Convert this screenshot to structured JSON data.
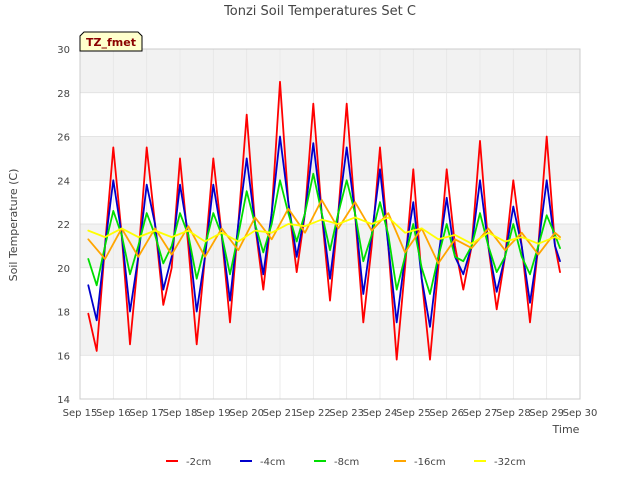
{
  "chart_data": {
    "type": "line",
    "title": "Tonzi Soil Temperatures Set C",
    "xlabel": "Time",
    "ylabel": "Soil Temperature (C)",
    "annotation": "TZ_fmet",
    "xlim": [
      15,
      30
    ],
    "ylim": [
      14,
      30
    ],
    "x_ticks": [
      15,
      16,
      17,
      18,
      19,
      20,
      21,
      22,
      23,
      24,
      25,
      26,
      27,
      28,
      29,
      30
    ],
    "x_tick_labels": [
      "Sep 15",
      "Sep 16",
      "Sep 17",
      "Sep 18",
      "Sep 19",
      "Sep 20",
      "Sep 21",
      "Sep 22",
      "Sep 23",
      "Sep 24",
      "Sep 25",
      "Sep 26",
      "Sep 27",
      "Sep 28",
      "Sep 29",
      "Sep 30"
    ],
    "y_ticks": [
      14,
      16,
      18,
      20,
      22,
      24,
      26,
      28,
      30
    ],
    "y_tick_labels": [
      "14",
      "16",
      "18",
      "20",
      "22",
      "24",
      "26",
      "28",
      "30"
    ],
    "grid": true,
    "legend_position": "bottom",
    "series": [
      {
        "name": "-2cm",
        "color": "#ff0000",
        "x": [
          15.25,
          15.5,
          15.75,
          16.0,
          16.25,
          16.5,
          16.75,
          17.0,
          17.25,
          17.5,
          17.75,
          18.0,
          18.25,
          18.5,
          18.75,
          19.0,
          19.25,
          19.5,
          19.75,
          20.0,
          20.25,
          20.5,
          20.75,
          21.0,
          21.25,
          21.5,
          21.75,
          22.0,
          22.25,
          22.5,
          22.75,
          23.0,
          23.25,
          23.5,
          23.75,
          24.0,
          24.25,
          24.5,
          24.75,
          25.0,
          25.25,
          25.5,
          25.75,
          26.0,
          26.25,
          26.5,
          26.75,
          27.0,
          27.25,
          27.5,
          27.75,
          28.0,
          28.25,
          28.5,
          28.75,
          29.0,
          29.25,
          29.4
        ],
        "y": [
          17.9,
          16.2,
          21.0,
          25.5,
          21.5,
          16.5,
          20.5,
          25.5,
          22.0,
          18.3,
          20.0,
          25.0,
          21.0,
          16.5,
          20.5,
          25.0,
          21.5,
          17.5,
          22.0,
          27.0,
          22.0,
          19.0,
          22.5,
          28.5,
          23.0,
          19.8,
          22.5,
          27.5,
          22.5,
          18.5,
          22.5,
          27.5,
          22.5,
          17.5,
          21.0,
          25.5,
          21.0,
          15.8,
          20.0,
          24.5,
          19.5,
          15.8,
          20.0,
          24.5,
          21.0,
          19.0,
          21.0,
          25.8,
          21.0,
          18.1,
          20.5,
          24.0,
          21.0,
          17.5,
          21.0,
          26.0,
          21.0,
          19.8
        ]
      },
      {
        "name": "-4cm",
        "color": "#0000cc",
        "x": [
          15.25,
          15.5,
          15.75,
          16.0,
          16.25,
          16.5,
          16.75,
          17.0,
          17.25,
          17.5,
          17.75,
          18.0,
          18.25,
          18.5,
          18.75,
          19.0,
          19.25,
          19.5,
          19.75,
          20.0,
          20.25,
          20.5,
          20.75,
          21.0,
          21.25,
          21.5,
          21.75,
          22.0,
          22.25,
          22.5,
          22.75,
          23.0,
          23.25,
          23.5,
          23.75,
          24.0,
          24.25,
          24.5,
          24.75,
          25.0,
          25.25,
          25.5,
          25.75,
          26.0,
          26.25,
          26.5,
          26.75,
          27.0,
          27.25,
          27.5,
          27.75,
          28.0,
          28.25,
          28.5,
          28.75,
          29.0,
          29.25,
          29.4
        ],
        "y": [
          19.2,
          17.6,
          21.0,
          24.0,
          21.5,
          18.0,
          20.5,
          23.8,
          22.0,
          19.0,
          20.5,
          23.8,
          21.5,
          18.0,
          20.5,
          23.8,
          21.5,
          18.5,
          22.0,
          25.0,
          22.0,
          19.7,
          22.5,
          26.0,
          23.0,
          20.5,
          22.5,
          25.7,
          22.5,
          19.5,
          22.5,
          25.5,
          22.5,
          18.8,
          21.5,
          24.5,
          21.0,
          17.5,
          20.5,
          23.0,
          19.5,
          17.3,
          20.5,
          23.2,
          20.5,
          19.7,
          21.0,
          24.0,
          21.0,
          18.9,
          20.5,
          22.8,
          21.0,
          18.4,
          21.0,
          24.0,
          21.0,
          20.3
        ]
      },
      {
        "name": "-8cm",
        "color": "#00dd00",
        "x": [
          15.25,
          15.5,
          15.75,
          16.0,
          16.25,
          16.5,
          16.75,
          17.0,
          17.25,
          17.5,
          17.75,
          18.0,
          18.25,
          18.5,
          18.75,
          19.0,
          19.25,
          19.5,
          19.75,
          20.0,
          20.25,
          20.5,
          20.75,
          21.0,
          21.25,
          21.5,
          21.75,
          22.0,
          22.25,
          22.5,
          22.75,
          23.0,
          23.25,
          23.5,
          23.75,
          24.0,
          24.25,
          24.5,
          24.75,
          25.0,
          25.25,
          25.5,
          25.75,
          26.0,
          26.25,
          26.5,
          26.75,
          27.0,
          27.25,
          27.5,
          27.75,
          28.0,
          28.25,
          28.5,
          28.75,
          29.0,
          29.25,
          29.4
        ],
        "y": [
          20.4,
          19.2,
          21.0,
          22.6,
          21.5,
          19.7,
          21.0,
          22.5,
          21.5,
          20.2,
          21.0,
          22.5,
          21.5,
          19.5,
          21.0,
          22.5,
          21.5,
          19.7,
          21.5,
          23.5,
          22.0,
          20.7,
          22.0,
          24.0,
          22.5,
          21.2,
          22.5,
          24.3,
          22.5,
          20.8,
          22.5,
          24.0,
          22.5,
          20.3,
          21.5,
          23.0,
          21.5,
          19.0,
          20.5,
          22.0,
          20.0,
          18.8,
          20.5,
          22.0,
          20.5,
          20.3,
          21.0,
          22.5,
          21.0,
          19.8,
          20.5,
          22.0,
          20.5,
          19.7,
          21.0,
          22.4,
          21.5,
          20.9
        ]
      },
      {
        "name": "-16cm",
        "color": "#ffa500",
        "x": [
          15.25,
          15.75,
          16.25,
          16.75,
          17.25,
          17.75,
          18.25,
          18.75,
          19.25,
          19.75,
          20.25,
          20.75,
          21.25,
          21.75,
          22.25,
          22.75,
          23.25,
          23.75,
          24.25,
          24.75,
          25.25,
          25.75,
          26.25,
          26.75,
          27.25,
          27.75,
          28.25,
          28.75,
          29.25,
          29.4
        ],
        "y": [
          21.3,
          20.4,
          21.8,
          20.5,
          21.8,
          20.6,
          21.9,
          20.5,
          21.8,
          20.8,
          22.3,
          21.3,
          22.7,
          21.6,
          23.1,
          21.8,
          23.0,
          21.7,
          22.5,
          20.7,
          21.8,
          20.2,
          21.3,
          20.9,
          21.8,
          20.8,
          21.6,
          20.6,
          21.6,
          21.4
        ]
      },
      {
        "name": "-32cm",
        "color": "#ffff00",
        "x": [
          15.25,
          15.75,
          16.25,
          16.75,
          17.25,
          17.75,
          18.25,
          18.75,
          19.25,
          19.75,
          20.25,
          20.75,
          21.25,
          21.75,
          22.25,
          22.75,
          23.25,
          23.75,
          24.25,
          24.75,
          25.25,
          25.75,
          26.25,
          26.75,
          27.25,
          27.75,
          28.25,
          28.75,
          29.25,
          29.4
        ],
        "y": [
          21.7,
          21.4,
          21.8,
          21.4,
          21.7,
          21.4,
          21.7,
          21.2,
          21.6,
          21.2,
          21.7,
          21.6,
          22.0,
          21.9,
          22.2,
          22.0,
          22.3,
          22.0,
          22.3,
          21.6,
          21.8,
          21.3,
          21.5,
          21.1,
          21.6,
          21.2,
          21.4,
          21.1,
          21.4,
          21.3
        ]
      }
    ]
  }
}
